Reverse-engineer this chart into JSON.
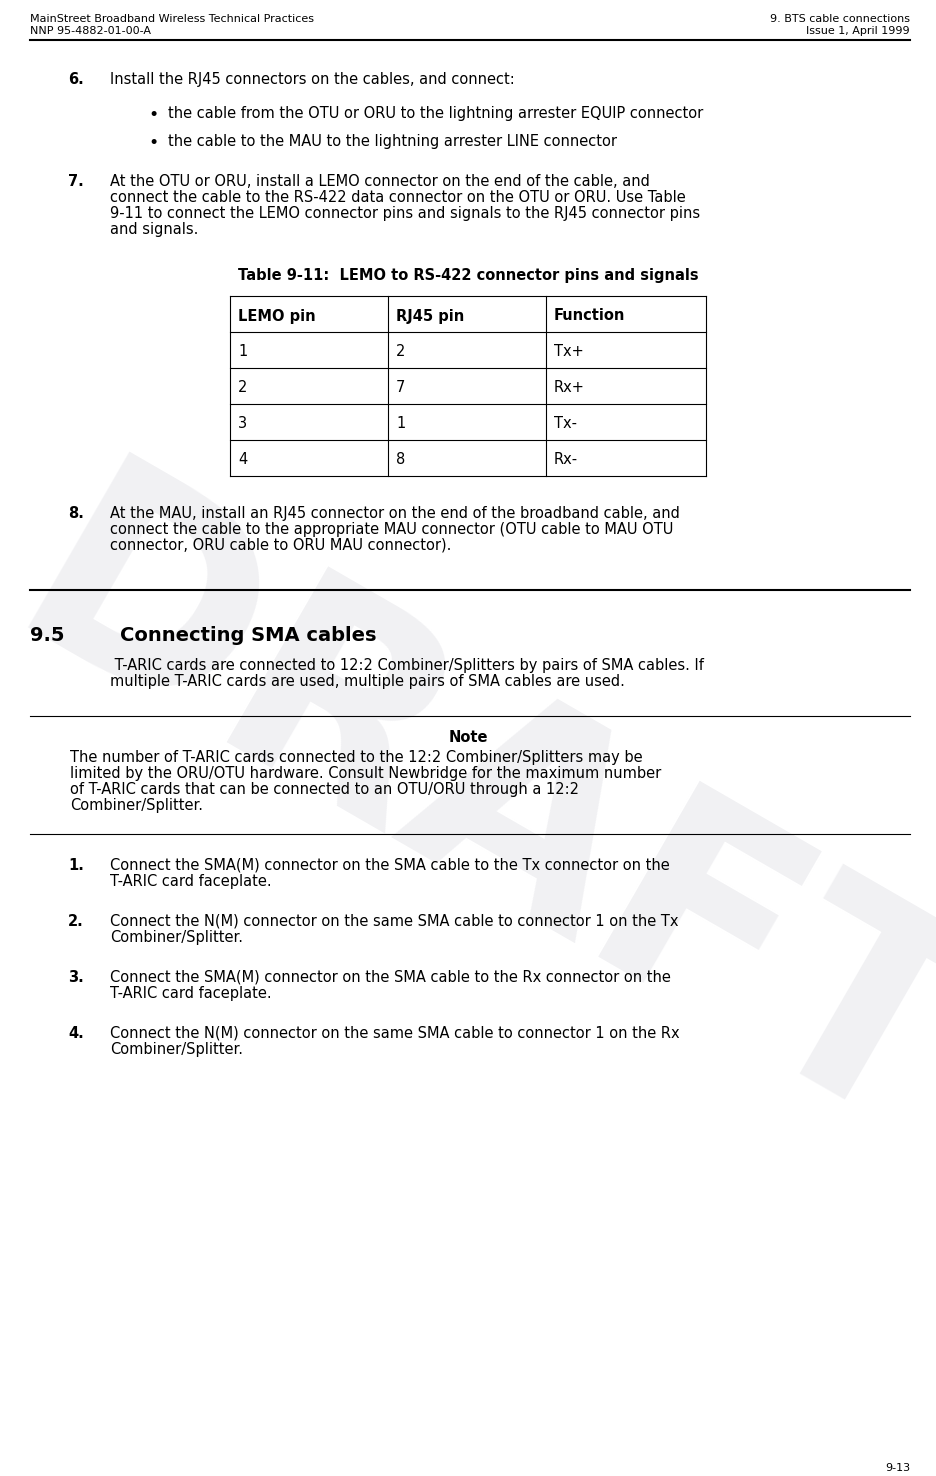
{
  "header_left_line1": "MainStreet Broadband Wireless Technical Practices",
  "header_left_line2": "NNP 95-4882-01-00-A",
  "header_right_line1": "9. BTS cable connections",
  "header_right_line2": "Issue 1, April 1999",
  "footer_text": "9-13",
  "draft_watermark": "DRAFT",
  "section_number_6": "6.",
  "section_text_6": "Install the RJ45 connectors on the cables, and connect:",
  "bullet_1": "the cable from the OTU or ORU to the lightning arrester EQUIP connector",
  "bullet_2": "the cable to the MAU to the lightning arrester LINE connector",
  "section_number_7": "7.",
  "section_text_7a": "At the OTU or ORU, install a LEMO connector on the end of the cable, and",
  "section_text_7b": "connect the cable to the RS-422 data connector on the OTU or ORU. Use Table",
  "section_text_7c": "9-11 to connect the LEMO connector pins and signals to the RJ45 connector pins",
  "section_text_7d": "and signals.",
  "table_title": "Table 9-11:  LEMO to RS-422 connector pins and signals",
  "table_headers": [
    "LEMO pin",
    "RJ45 pin",
    "Function"
  ],
  "table_rows": [
    [
      "1",
      "2",
      "Tx+"
    ],
    [
      "2",
      "7",
      "Rx+"
    ],
    [
      "3",
      "1",
      "Tx-"
    ],
    [
      "4",
      "8",
      "Rx-"
    ]
  ],
  "section_number_8": "8.",
  "section_text_8a": "At the MAU, install an RJ45 connector on the end of the broadband cable, and",
  "section_text_8b": "connect the cable to the appropriate MAU connector (OTU cable to MAU OTU",
  "section_text_8c": "connector, ORU cable to ORU MAU connector).",
  "section_95": "9.5",
  "section_95_title": "Connecting SMA cables",
  "section_95_body_a": " T-ARIC cards are connected to 12:2 Combiner/Splitters by pairs of SMA cables. If",
  "section_95_body_b": "multiple T-ARIC cards are used, multiple pairs of SMA cables are used.",
  "note_title": "Note",
  "note_body_a": "The number of T-ARIC cards connected to the 12:2 Combiner/Splitters may be",
  "note_body_b": "limited by the ORU/OTU hardware. Consult Newbridge for the maximum number",
  "note_body_c": "of T-ARIC cards that can be connected to an OTU/ORU through a 12:2",
  "note_body_d": "Combiner/Splitter.",
  "section_number_1b": "1.",
  "section_text_1b_a": "Connect the SMA(M) connector on the SMA cable to the Tx connector on the",
  "section_text_1b_b": "T-ARIC card faceplate.",
  "section_number_2b": "2.",
  "section_text_2b_a": "Connect the N(M) connector on the same SMA cable to connector 1 on the Tx",
  "section_text_2b_b": "Combiner/Splitter.",
  "section_number_3b": "3.",
  "section_text_3b_a": "Connect the SMA(M) connector on the SMA cable to the Rx connector on the",
  "section_text_3b_b": "T-ARIC card faceplate.",
  "section_number_4b": "4.",
  "section_text_4b_a": "Connect the N(M) connector on the same SMA cable to connector 1 on the Rx",
  "section_text_4b_b": "Combiner/Splitter.",
  "bg_color": "#ffffff",
  "text_color": "#000000",
  "header_font_size": 8.0,
  "body_font_size": 10.5,
  "watermark_color": "#d0d0d8",
  "watermark_alpha": 0.3
}
